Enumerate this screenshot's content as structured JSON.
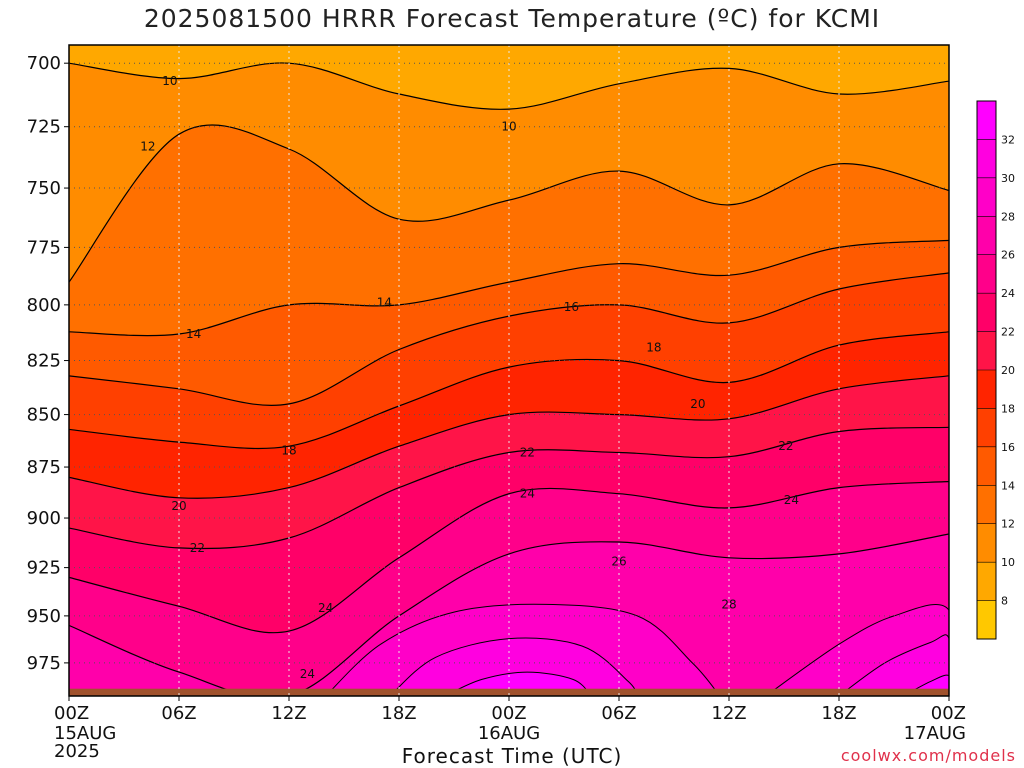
{
  "title": "2025081500 HRRR Forecast Temperature (ºC) for KCMI",
  "xlabel": "Forecast Time (UTC)",
  "credit": "coolwx.com/models",
  "colors": {
    "band_6_8": "#ffc800",
    "band_8_10": "#ffa800",
    "band_10_12": "#ff8c00",
    "band_12_14": "#ff7000",
    "band_14_16": "#ff5a00",
    "band_16_18": "#ff4000",
    "band_18_20": "#ff2400",
    "band_20_22": "#ff1448",
    "band_22_24": "#ff0068",
    "band_24_26": "#ff008a",
    "band_26_28": "#ff00aa",
    "band_28_30": "#ff00c8",
    "band_30_32": "#ff00e0",
    "band_32_34": "#ff00ff",
    "ground": "#a0522d"
  },
  "chart_data": {
    "type": "heatmap",
    "title": "2025081500 HRRR Forecast Temperature (ºC) for KCMI",
    "xlabel": "Forecast Time (UTC)",
    "ylabel": "",
    "x_ticks": [
      {
        "hour": 0,
        "label": "00Z",
        "sub1": "15AUG",
        "sub2": "2025"
      },
      {
        "hour": 6,
        "label": "06Z",
        "sub1": "",
        "sub2": ""
      },
      {
        "hour": 12,
        "label": "12Z",
        "sub1": "",
        "sub2": ""
      },
      {
        "hour": 18,
        "label": "18Z",
        "sub1": "",
        "sub2": ""
      },
      {
        "hour": 24,
        "label": "00Z",
        "sub1": "16AUG",
        "sub2": ""
      },
      {
        "hour": 30,
        "label": "06Z",
        "sub1": "",
        "sub2": ""
      },
      {
        "hour": 36,
        "label": "12Z",
        "sub1": "",
        "sub2": ""
      },
      {
        "hour": 42,
        "label": "18Z",
        "sub1": "",
        "sub2": ""
      },
      {
        "hour": 48,
        "label": "00Z",
        "sub1": "17AUG",
        "sub2": ""
      }
    ],
    "xlim": [
      0,
      48
    ],
    "y_ticks": [
      700,
      725,
      750,
      775,
      800,
      825,
      850,
      875,
      900,
      925,
      950,
      975
    ],
    "ylim": [
      693,
      993
    ],
    "y_scale": "log-pressure",
    "grid": true,
    "colorbar_levels": [
      8,
      10,
      12,
      14,
      16,
      18,
      20,
      22,
      24,
      26,
      28,
      30,
      32
    ],
    "colorbar_range": [
      6,
      34
    ],
    "surface_pressure": 989,
    "hours": [
      0,
      6,
      12,
      18,
      24,
      30,
      36,
      42,
      48
    ],
    "isotherms": [
      {
        "temp": 10,
        "pressure": [
          700,
          706,
          700,
          712,
          718,
          708,
          702,
          712,
          707
        ],
        "label": "10"
      },
      {
        "temp": 12,
        "pressure": [
          790,
          728,
          734,
          763,
          755,
          743,
          757,
          740,
          751
        ],
        "label": "12"
      },
      {
        "temp": 14,
        "pressure": [
          812,
          813,
          800,
          800,
          790,
          782,
          787,
          775,
          772
        ],
        "label": "14"
      },
      {
        "temp": 16,
        "pressure": [
          832,
          838,
          845,
          820,
          805,
          800,
          808,
          793,
          786
        ],
        "label": "16"
      },
      {
        "temp": 18,
        "pressure": [
          857,
          863,
          865,
          846,
          828,
          825,
          835,
          818,
          812
        ],
        "label": "18"
      },
      {
        "temp": 20,
        "pressure": [
          880,
          890,
          885,
          865,
          850,
          850,
          852,
          838,
          832
        ],
        "label": "20"
      },
      {
        "temp": 22,
        "pressure": [
          905,
          915,
          910,
          885,
          868,
          868,
          870,
          858,
          856
        ],
        "label": "22"
      },
      {
        "temp": 24,
        "pressure": [
          930,
          945,
          958,
          920,
          888,
          888,
          895,
          885,
          882
        ],
        "label": "24"
      },
      {
        "temp": 26,
        "pressure": [
          955,
          980,
          993,
          950,
          918,
          912,
          920,
          918,
          908
        ],
        "label": "26"
      }
    ],
    "warm_core": [
      {
        "temp": 28,
        "label": "28"
      },
      {
        "temp": 30,
        "label": ""
      },
      {
        "temp": 32,
        "label": ""
      }
    ],
    "contour_labels": [
      {
        "text": "10",
        "hour": 5.5,
        "pressure": 707
      },
      {
        "text": "10",
        "hour": 24.0,
        "pressure": 725
      },
      {
        "text": "12",
        "hour": 4.3,
        "pressure": 733
      },
      {
        "text": "14",
        "hour": 6.8,
        "pressure": 813
      },
      {
        "text": "14",
        "hour": 17.2,
        "pressure": 799
      },
      {
        "text": "16",
        "hour": 27.4,
        "pressure": 801
      },
      {
        "text": "18",
        "hour": 31.9,
        "pressure": 819
      },
      {
        "text": "18",
        "hour": 12.0,
        "pressure": 867
      },
      {
        "text": "20",
        "hour": 34.3,
        "pressure": 845
      },
      {
        "text": "20",
        "hour": 6.0,
        "pressure": 894
      },
      {
        "text": "22",
        "hour": 25.0,
        "pressure": 868
      },
      {
        "text": "22",
        "hour": 39.1,
        "pressure": 865
      },
      {
        "text": "22",
        "hour": 7.0,
        "pressure": 915
      },
      {
        "text": "24",
        "hour": 25.0,
        "pressure": 888
      },
      {
        "text": "24",
        "hour": 39.4,
        "pressure": 891
      },
      {
        "text": "24",
        "hour": 14.0,
        "pressure": 946
      },
      {
        "text": "24",
        "hour": 13.0,
        "pressure": 981
      },
      {
        "text": "26",
        "hour": 30.0,
        "pressure": 922
      },
      {
        "text": "28",
        "hour": 36.0,
        "pressure": 944
      }
    ]
  }
}
